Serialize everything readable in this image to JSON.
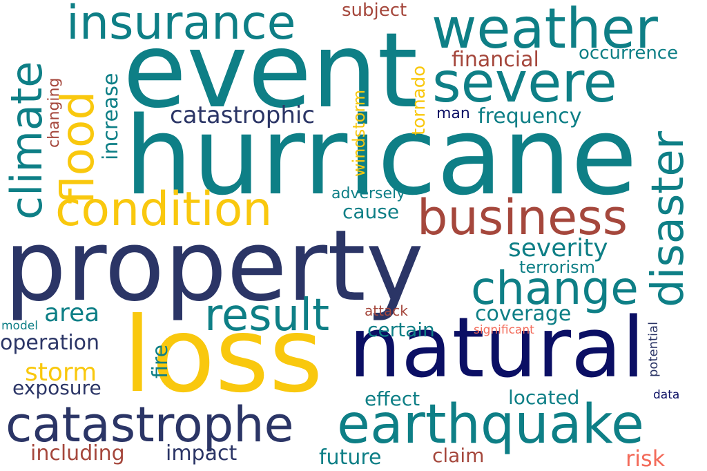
{
  "words": {
    "hurricane": "hurricane",
    "event": "event",
    "property": "property",
    "loss": "loss",
    "natural": "natural",
    "weather": "weather",
    "severe": "severe",
    "insurance": "insurance",
    "climate": "climate",
    "flood": "flood",
    "condition": "condition",
    "business": "business",
    "disaster": "disaster",
    "change": "change",
    "catastrophe": "catastrophe",
    "earthquake": "earthquake",
    "result": "result",
    "storm": "storm",
    "catastrophic": "catastrophic",
    "severity": "severity",
    "area": "area",
    "operation": "operation",
    "subject": "subject",
    "financial": "financial",
    "occurrence": "occurrence",
    "frequency": "frequency",
    "increase": "increase",
    "changing": "changing",
    "tornado": "tornado",
    "windstorm": "windstorm",
    "man": "man",
    "adversely": "adversely",
    "cause": "cause",
    "terrorism": "terrorism",
    "coverage": "coverage",
    "attack": "attack",
    "certain": "certain",
    "significant": "significant",
    "fire": "fire",
    "model": "model",
    "exposure": "exposure",
    "effect": "effect",
    "located": "located",
    "potential": "potential",
    "data": "data",
    "including": "including",
    "impact": "impact",
    "future": "future",
    "claim": "claim",
    "risk": "risk"
  },
  "colors": {
    "teal": "#0e7f86",
    "navy": "#2b3566",
    "dark_navy": "#0b0f64",
    "gold": "#f9c80e",
    "brick": "#a5473c",
    "coral": "#f36b5a",
    "background": "#ffffff"
  }
}
